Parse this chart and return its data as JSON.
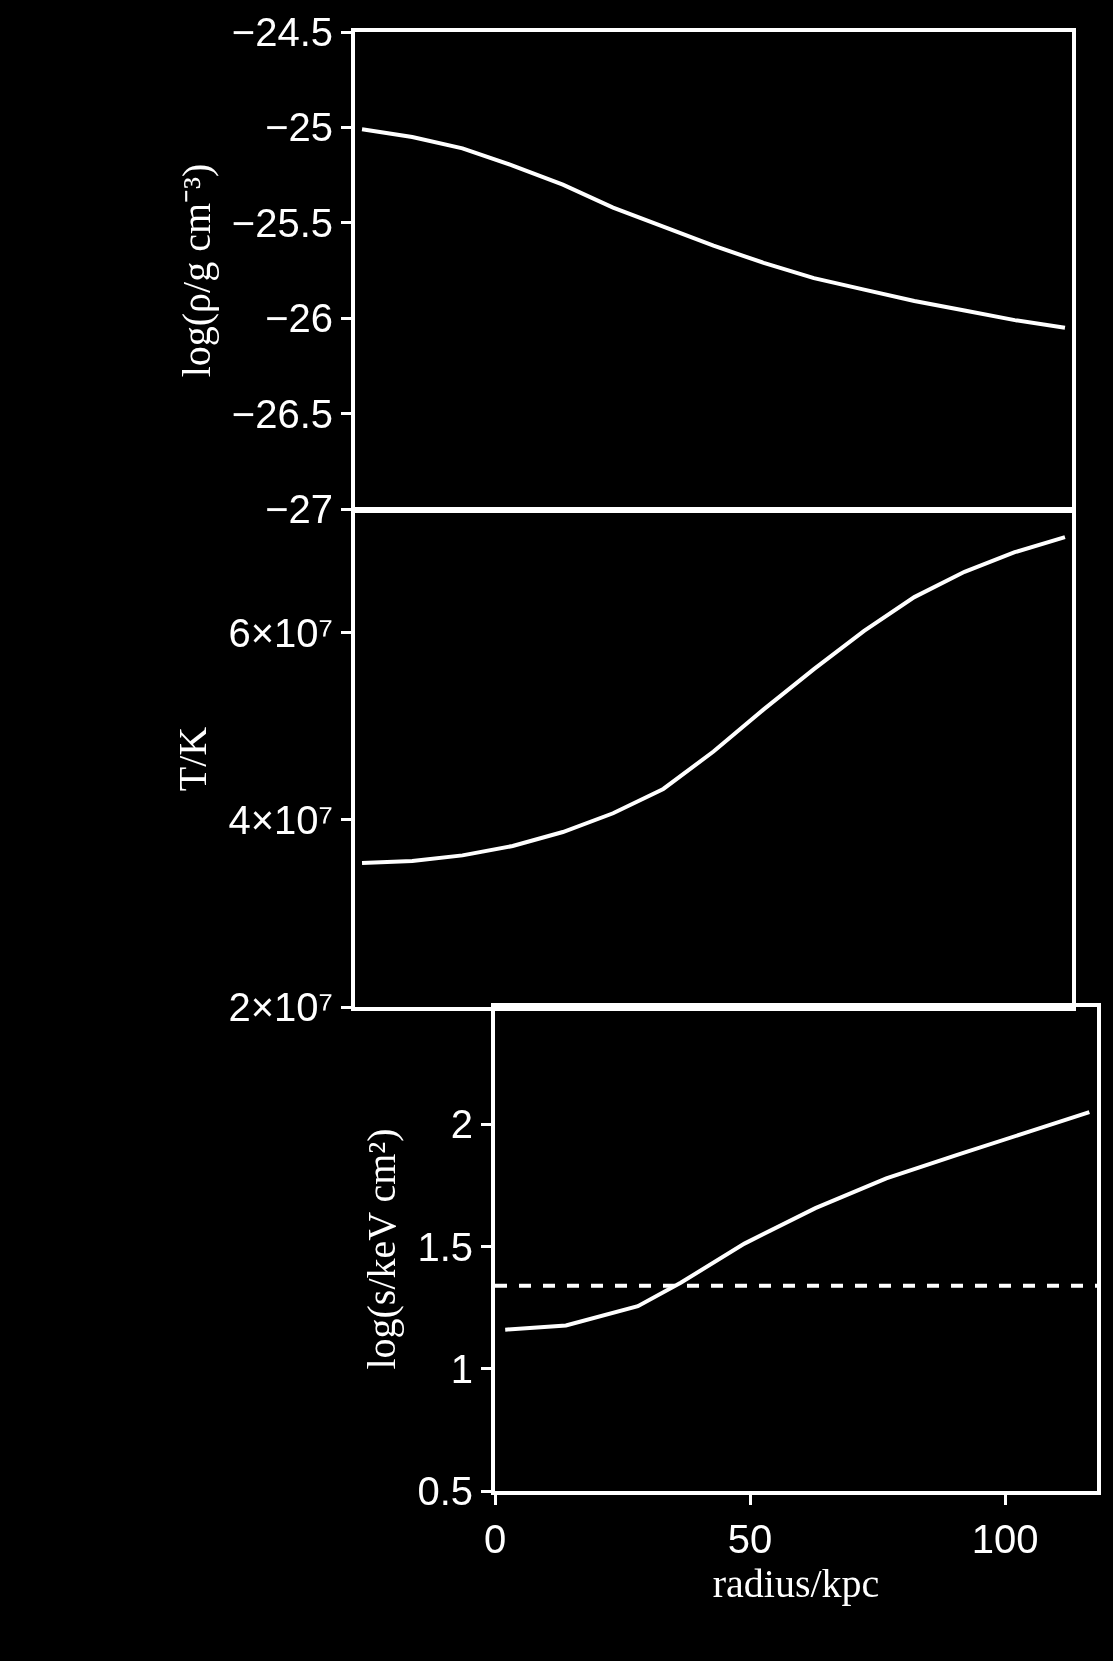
{
  "chart_data": [
    {
      "type": "line",
      "ylabel": "log(ρ/g cm⁻³)",
      "categories": [
        null,
        null,
        null,
        null,
        null,
        null,
        null,
        null,
        null,
        null,
        null,
        null,
        null,
        null,
        null
      ],
      "series": [
        {
          "color": "#ffffff",
          "values": [
            -25.01,
            -25.05,
            -25.11,
            -25.2,
            -25.3,
            -25.42,
            -25.52,
            -25.62,
            -25.71,
            -25.79,
            -25.85,
            -25.91,
            -25.96,
            -26.01,
            -26.05
          ]
        }
      ],
      "ylim": [
        -27,
        -24.5
      ],
      "tick_labels": "y",
      "marker": "none",
      "line_style": "solid",
      "yticks": [
        -27,
        -26.5,
        -26,
        -25.5,
        -25,
        -24.5
      ]
    },
    {
      "type": "line",
      "ylabel": "T/K",
      "categories": [
        null,
        null,
        null,
        null,
        null,
        null,
        null,
        null,
        null,
        null,
        null,
        null,
        null,
        null,
        null
      ],
      "series": [
        {
          "color": "#ffffff",
          "values": [
            35400000,
            35600000,
            36200000,
            37200000,
            38700000,
            40700000,
            43300000,
            47300000,
            51800000,
            56100000,
            60200000,
            63800000,
            66500000,
            68600000,
            70200000
          ]
        }
      ],
      "ylim": [
        20000000,
        73000000
      ],
      "tick_labels": "y",
      "marker": "none",
      "line_style": "solid",
      "yticks": [
        {
          "value": 20000000,
          "label": "2×10⁷"
        },
        {
          "value": 40000000,
          "label": "4×10⁷"
        },
        {
          "value": 60000000,
          "label": "6×10⁷"
        }
      ]
    },
    {
      "type": "line",
      "ylabel": "log(s/keV cm²)",
      "xlabel": "radius/kpc",
      "x": [
        2,
        13.9,
        28,
        36.4,
        48.9,
        62.8,
        76.7,
        90.6,
        104.4,
        116.5
      ],
      "series": [
        {
          "color": "#ffffff",
          "values": [
            1.16,
            1.177,
            1.256,
            1.352,
            1.512,
            1.657,
            1.779,
            1.875,
            1.968,
            2.05
          ]
        }
      ],
      "xlim": [
        0,
        118
      ],
      "ylim": [
        0.5,
        2.48
      ],
      "marker": "none",
      "line_style": "solid",
      "ref_lines": [
        {
          "axis": "y",
          "value": 1.34,
          "color": "#ffffff",
          "line_style": "dashed"
        }
      ],
      "xticks": [
        0,
        50,
        100
      ],
      "yticks": [
        0.5,
        1,
        1.5,
        2
      ]
    }
  ]
}
